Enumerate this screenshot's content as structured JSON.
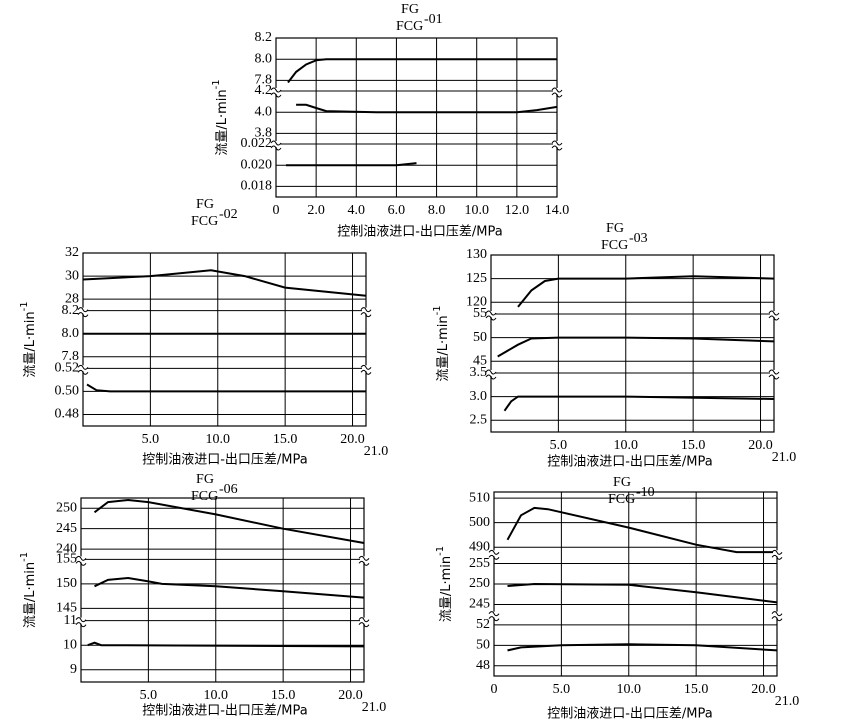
{
  "chart_data": [
    {
      "type": "line",
      "title": "FG",
      "subtitle": "FCG",
      "model": "-01",
      "xlabel": "控制油液进口-出口压差/MPa",
      "ylabel": "流量/L·min",
      "ylabel_sup": "-1",
      "color": "#000000",
      "grid": true,
      "xlim": [
        0,
        14
      ],
      "xticks": [
        0,
        {
          "value": 2,
          "label": "2.0"
        },
        {
          "value": 4,
          "label": "4.0"
        },
        {
          "value": 6,
          "label": "6.0"
        },
        {
          "value": 8,
          "label": "8.0"
        },
        {
          "value": 10,
          "label": "10.0"
        },
        {
          "value": 12,
          "label": "12.0"
        },
        {
          "value": 14,
          "label": "14.0"
        }
      ],
      "segments": [
        {
          "ylim": [
            7.7,
            8.2
          ],
          "yticks": [
            8.2,
            {
              "value": 8,
              "label": "8.0"
            },
            7.8
          ],
          "x": [
            0.6,
            1,
            1.5,
            2,
            2.5,
            3,
            14
          ],
          "values": [
            7.78,
            7.88,
            7.95,
            7.99,
            8.0,
            8.0,
            8.0
          ]
        },
        {
          "ylim": [
            3.7,
            4.2
          ],
          "yticks": [
            4.2,
            {
              "value": 4,
              "label": "4.0"
            },
            3.8
          ],
          "x": [
            1,
            1.5,
            2,
            2.5,
            5,
            10,
            12,
            13,
            14
          ],
          "values": [
            4.07,
            4.07,
            4.04,
            4.01,
            4.0,
            4.0,
            4.0,
            4.02,
            4.05
          ]
        },
        {
          "ylim": [
            0.017,
            0.022
          ],
          "yticks": [
            0.022,
            {
              "value": 0.02,
              "label": "0.020"
            },
            0.018
          ],
          "x": [
            0.5,
            6,
            7
          ],
          "values": [
            0.02,
            0.02,
            0.0202
          ]
        }
      ]
    },
    {
      "type": "line",
      "title": "FG",
      "subtitle": "FCG",
      "model": "-02",
      "xlabel": "控制油液进口-出口压差/MPa",
      "ylabel": "流量/L·min",
      "ylabel_sup": "-1",
      "color": "#000000",
      "grid": true,
      "xlim": [
        0,
        21
      ],
      "xticks": [
        {
          "value": 5,
          "label": "5.0"
        },
        {
          "value": 10,
          "label": "10.0"
        },
        {
          "value": 15,
          "label": "15.0"
        },
        {
          "value": 20,
          "label": "20.0"
        },
        {
          "value": 21,
          "label": "21.0"
        }
      ],
      "segments": [
        {
          "ylim": [
            27,
            32
          ],
          "yticks": [
            32,
            30,
            28
          ],
          "x": [
            0,
            5,
            9.5,
            12,
            15,
            21
          ],
          "values": [
            29.7,
            30.0,
            30.5,
            30.0,
            29.0,
            28.3
          ]
        },
        {
          "ylim": [
            7.7,
            8.2
          ],
          "yticks": [
            8.2,
            {
              "value": 8,
              "label": "8.0"
            },
            7.8
          ],
          "x": [
            0,
            21
          ],
          "values": [
            8.0,
            8.0
          ]
        },
        {
          "ylim": [
            0.47,
            0.52
          ],
          "yticks": [
            0.52,
            {
              "value": 0.5,
              "label": "0.50"
            },
            0.48
          ],
          "x": [
            0.3,
            1,
            2,
            21
          ],
          "values": [
            0.506,
            0.501,
            0.5,
            0.5
          ]
        }
      ]
    },
    {
      "type": "line",
      "title": "FG",
      "subtitle": "FCG",
      "model": "-03",
      "xlabel": "控制油液进口-出口压差/MPa",
      "ylabel": "流量/L·min",
      "ylabel_sup": "-1",
      "color": "#000000",
      "grid": true,
      "xlim": [
        0,
        21
      ],
      "xticks": [
        {
          "value": 5,
          "label": "5.0"
        },
        {
          "value": 10,
          "label": "10.0"
        },
        {
          "value": 15,
          "label": "15.0"
        },
        {
          "value": 20,
          "label": "20.0"
        },
        {
          "value": 21,
          "label": "21.0"
        }
      ],
      "segments": [
        {
          "ylim": [
            117.5,
            130
          ],
          "yticks": [
            130,
            125,
            120
          ],
          "x": [
            2,
            3,
            4,
            5,
            10,
            15,
            21
          ],
          "values": [
            119,
            122.5,
            124.5,
            125,
            125,
            125.5,
            125
          ]
        },
        {
          "ylim": [
            42.5,
            55
          ],
          "yticks": [
            55,
            50,
            45
          ],
          "x": [
            0.5,
            2,
            3,
            5,
            10,
            15,
            21
          ],
          "values": [
            46,
            48.5,
            49.8,
            50,
            50,
            49.8,
            49.2
          ]
        },
        {
          "ylim": [
            2.25,
            3.5
          ],
          "yticks": [
            3.5,
            {
              "value": 3,
              "label": "3.0"
            },
            2.5
          ],
          "x": [
            1,
            1.5,
            2,
            5,
            10,
            21
          ],
          "values": [
            2.7,
            2.9,
            3.0,
            3.0,
            3.0,
            2.95
          ]
        }
      ]
    },
    {
      "type": "line",
      "title": "FG",
      "subtitle": "FCG",
      "model": "-06",
      "xlabel": "控制油液进口-出口压差/MPa",
      "ylabel": "流量/L·min",
      "ylabel_sup": "-1",
      "color": "#000000",
      "grid": true,
      "xlim": [
        0,
        21
      ],
      "xticks": [
        {
          "value": 5,
          "label": "5.0"
        },
        {
          "value": 10,
          "label": "10.0"
        },
        {
          "value": 15,
          "label": "15.0"
        },
        {
          "value": 20,
          "label": "20.0"
        },
        {
          "value": 21,
          "label": "21.0"
        }
      ],
      "segments": [
        {
          "ylim": [
            237.5,
            252.5
          ],
          "yticks": [
            250,
            245,
            240
          ],
          "x": [
            1,
            2,
            3.5,
            5,
            10,
            15,
            21
          ],
          "values": [
            249,
            251.5,
            252,
            251.5,
            248.5,
            245,
            241.5
          ]
        },
        {
          "ylim": [
            142.5,
            155
          ],
          "yticks": [
            155,
            150,
            145
          ],
          "x": [
            1,
            2,
            3.5,
            5,
            6,
            10,
            15,
            21
          ],
          "values": [
            149.5,
            150.8,
            151.2,
            150.5,
            150,
            149.5,
            148.5,
            147.2
          ]
        },
        {
          "ylim": [
            8.5,
            11
          ],
          "yticks": [
            11,
            10,
            9
          ],
          "x": [
            0.5,
            1,
            1.5,
            3,
            21
          ],
          "values": [
            10,
            10.1,
            10,
            10,
            9.95
          ]
        }
      ]
    },
    {
      "type": "line",
      "title": "FG",
      "subtitle": "FCG",
      "model": "-10",
      "xlabel": "控制油液进口-出口压差/MPa",
      "ylabel": "流量/L·min",
      "ylabel_sup": "-1",
      "color": "#000000",
      "grid": true,
      "xlim": [
        0,
        21
      ],
      "xticks": [
        0,
        {
          "value": 5,
          "label": "5.0"
        },
        {
          "value": 10,
          "label": "10.0"
        },
        {
          "value": 15,
          "label": "15.0"
        },
        {
          "value": 20,
          "label": "20.0"
        },
        {
          "value": 21,
          "label": "21.0"
        }
      ],
      "segments": [
        {
          "ylim": [
            487.5,
            512.5
          ],
          "yticks": [
            510,
            500,
            490
          ],
          "x": [
            1,
            2,
            3,
            4,
            10,
            15,
            18,
            21
          ],
          "values": [
            493,
            503,
            506,
            505.5,
            498,
            491,
            488,
            488
          ]
        },
        {
          "ylim": [
            242.5,
            257.5
          ],
          "yticks": [
            255,
            250,
            245
          ],
          "x": [
            1,
            3,
            10,
            15,
            21
          ],
          "values": [
            249.5,
            250,
            249.8,
            248,
            245.5
          ]
        },
        {
          "ylim": [
            47,
            53
          ],
          "yticks": [
            52,
            50,
            48
          ],
          "x": [
            1,
            2,
            5,
            10,
            15,
            21
          ],
          "values": [
            49.5,
            49.8,
            50,
            50.1,
            50,
            49.5
          ]
        }
      ]
    }
  ]
}
